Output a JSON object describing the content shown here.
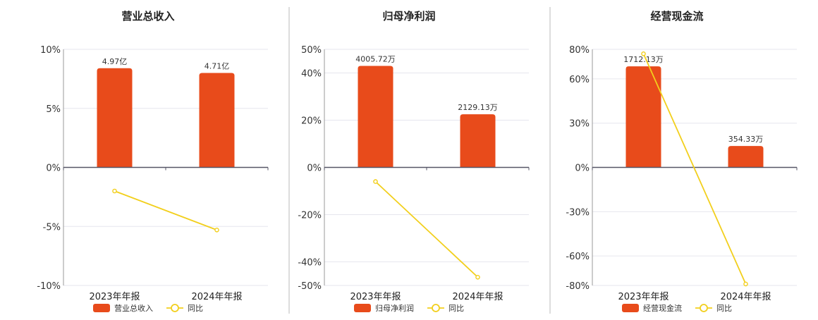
{
  "chart_data": [
    {
      "type": "bar",
      "title": "营业总收入",
      "categories": [
        "2023年年报",
        "2024年年报"
      ],
      "bar_series": {
        "name": "营业总收入",
        "labels": [
          "4.97亿",
          "4.71亿"
        ],
        "bar_values_pct": [
          8.4,
          8.0
        ]
      },
      "line_series": {
        "name": "同比",
        "values": [
          -2.0,
          -5.3
        ]
      },
      "y_ticks": [
        "10%",
        "5%",
        "0%",
        "-5%",
        "-10%"
      ],
      "y_tick_values": [
        10,
        5,
        0,
        -5,
        -10
      ],
      "ylim": [
        -10,
        10
      ],
      "colors": {
        "bar": "#E84B1B",
        "line": "#F2CF1C"
      }
    },
    {
      "type": "bar",
      "title": "归母净利润",
      "categories": [
        "2023年年报",
        "2024年年报"
      ],
      "bar_series": {
        "name": "归母净利润",
        "labels": [
          "4005.72万",
          "2129.13万"
        ],
        "bar_values_pct": [
          43,
          22.5
        ]
      },
      "line_series": {
        "name": "同比",
        "values": [
          -6,
          -46.5
        ]
      },
      "y_ticks": [
        "50%",
        "40%",
        "20%",
        "0%",
        "-20%",
        "-40%",
        "-50%"
      ],
      "y_tick_values": [
        50,
        40,
        20,
        0,
        -20,
        -40,
        -50
      ],
      "ylim": [
        -50,
        50
      ],
      "colors": {
        "bar": "#E84B1B",
        "line": "#F2CF1C"
      }
    },
    {
      "type": "bar",
      "title": "经营现金流",
      "categories": [
        "2023年年报",
        "2024年年报"
      ],
      "bar_series": {
        "name": "经营现金流",
        "labels": [
          "1712.13万",
          "354.33万"
        ],
        "bar_values_pct": [
          68.5,
          14.5
        ]
      },
      "line_series": {
        "name": "同比",
        "values": [
          77,
          -79
        ]
      },
      "y_ticks": [
        "80%",
        "60%",
        "30%",
        "0%",
        "-30%",
        "-60%",
        "-80%"
      ],
      "y_tick_values": [
        80,
        60,
        30,
        0,
        -30,
        -60,
        -80
      ],
      "ylim": [
        -80,
        80
      ],
      "colors": {
        "bar": "#E84B1B",
        "line": "#F2CF1C"
      }
    }
  ]
}
